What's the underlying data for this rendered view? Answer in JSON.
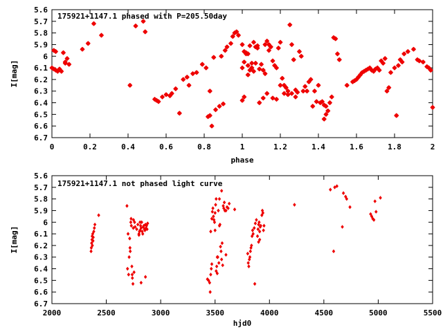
{
  "chart_data": [
    {
      "type": "scatter",
      "title": "175921+1147.1 phased with P=205.50day",
      "xlabel": "phase",
      "ylabel": "I[mag]",
      "xlim": [
        0,
        2
      ],
      "ylim": [
        5.6,
        6.7
      ],
      "y_inverted": true,
      "x_ticks": [
        "0",
        "0.2",
        "0.4",
        "0.6",
        "0.8",
        "1",
        "1.2",
        "1.4",
        "1.6",
        "1.8",
        "2"
      ],
      "y_ticks": [
        "5.6",
        "5.7",
        "5.8",
        "5.9",
        "6",
        "6.1",
        "6.2",
        "6.3",
        "6.4",
        "6.5",
        "6.6",
        "6.7"
      ],
      "marker_color": "#ee0000",
      "points": [
        [
          0.0,
          6.1
        ],
        [
          0.01,
          6.11
        ],
        [
          0.01,
          5.95
        ],
        [
          0.02,
          5.96
        ],
        [
          0.02,
          6.12
        ],
        [
          0.03,
          6.13
        ],
        [
          0.04,
          6.11
        ],
        [
          0.05,
          6.13
        ],
        [
          0.06,
          5.97
        ],
        [
          0.07,
          6.05
        ],
        [
          0.07,
          6.06
        ],
        [
          0.08,
          6.02
        ],
        [
          0.09,
          6.07
        ],
        [
          0.16,
          5.94
        ],
        [
          0.19,
          5.89
        ],
        [
          0.22,
          5.72
        ],
        [
          0.26,
          5.82
        ],
        [
          0.41,
          6.25
        ],
        [
          0.44,
          5.74
        ],
        [
          0.48,
          5.7
        ],
        [
          0.49,
          5.79
        ],
        [
          0.54,
          6.37
        ],
        [
          0.55,
          6.38
        ],
        [
          0.56,
          6.39
        ],
        [
          0.58,
          6.35
        ],
        [
          0.6,
          6.33
        ],
        [
          0.62,
          6.34
        ],
        [
          0.63,
          6.32
        ],
        [
          0.65,
          6.28
        ],
        [
          0.67,
          6.49
        ],
        [
          0.69,
          6.2
        ],
        [
          0.71,
          6.18
        ],
        [
          0.72,
          6.25
        ],
        [
          0.74,
          6.15
        ],
        [
          0.76,
          6.14
        ],
        [
          0.79,
          6.07
        ],
        [
          0.81,
          6.1
        ],
        [
          0.82,
          6.52
        ],
        [
          0.83,
          6.51
        ],
        [
          0.84,
          6.6
        ],
        [
          0.83,
          6.3
        ],
        [
          0.86,
          6.46
        ],
        [
          0.88,
          6.43
        ],
        [
          0.9,
          6.41
        ],
        [
          0.85,
          6.01
        ],
        [
          0.89,
          6.0
        ],
        [
          0.91,
          5.95
        ],
        [
          0.92,
          5.92
        ],
        [
          0.94,
          5.89
        ],
        [
          0.95,
          5.83
        ],
        [
          0.96,
          5.8
        ],
        [
          0.97,
          5.79
        ],
        [
          0.98,
          5.82
        ],
        [
          1.0,
          5.9
        ],
        [
          1.01,
          5.96
        ],
        [
          1.02,
          5.97
        ],
        [
          1.03,
          5.98
        ],
        [
          1.03,
          6.08
        ],
        [
          1.04,
          6.12
        ],
        [
          1.05,
          6.1
        ],
        [
          1.06,
          6.13
        ],
        [
          1.06,
          5.88
        ],
        [
          1.07,
          5.92
        ],
        [
          1.08,
          5.93
        ],
        [
          1.09,
          6.11
        ],
        [
          1.1,
          6.07
        ],
        [
          1.11,
          6.12
        ],
        [
          1.12,
          6.15
        ],
        [
          1.13,
          5.87
        ],
        [
          1.14,
          5.9
        ],
        [
          1.15,
          5.92
        ],
        [
          1.16,
          6.04
        ],
        [
          1.17,
          6.08
        ],
        [
          1.18,
          6.1
        ],
        [
          1.19,
          5.93
        ],
        [
          1.2,
          5.88
        ],
        [
          1.21,
          6.19
        ],
        [
          1.22,
          6.25
        ],
        [
          1.23,
          6.27
        ],
        [
          1.24,
          6.3
        ],
        [
          1.25,
          5.73
        ],
        [
          1.26,
          5.9
        ],
        [
          1.27,
          6.03
        ],
        [
          1.28,
          6.29
        ],
        [
          1.29,
          6.31
        ],
        [
          1.3,
          5.96
        ],
        [
          1.31,
          6.0
        ],
        [
          1.32,
          6.3
        ],
        [
          1.33,
          6.26
        ],
        [
          1.35,
          6.22
        ],
        [
          1.36,
          6.2
        ],
        [
          1.38,
          6.3
        ],
        [
          1.4,
          6.25
        ],
        [
          1.41,
          6.4
        ],
        [
          1.42,
          6.39
        ],
        [
          1.43,
          6.42
        ],
        [
          1.44,
          6.43
        ],
        [
          1.45,
          6.47
        ],
        [
          1.46,
          6.4
        ],
        [
          1.47,
          6.35
        ],
        [
          1.48,
          5.84
        ],
        [
          1.49,
          5.85
        ],
        [
          1.5,
          5.98
        ],
        [
          1.51,
          6.03
        ],
        [
          1.55,
          6.25
        ],
        [
          1.58,
          6.22
        ],
        [
          1.59,
          6.21
        ],
        [
          1.6,
          6.2
        ],
        [
          1.61,
          6.18
        ],
        [
          1.62,
          6.16
        ],
        [
          1.63,
          6.14
        ],
        [
          1.64,
          6.13
        ],
        [
          1.65,
          6.12
        ],
        [
          1.66,
          6.11
        ],
        [
          1.67,
          6.1
        ],
        [
          1.68,
          6.12
        ],
        [
          1.69,
          6.13
        ],
        [
          1.7,
          6.11
        ],
        [
          1.71,
          6.1
        ],
        [
          1.72,
          6.12
        ],
        [
          1.73,
          6.04
        ],
        [
          1.74,
          6.06
        ],
        [
          1.75,
          6.02
        ],
        [
          1.76,
          6.3
        ],
        [
          1.77,
          6.27
        ],
        [
          1.78,
          6.14
        ],
        [
          1.8,
          6.1
        ],
        [
          1.81,
          6.51
        ],
        [
          1.82,
          6.08
        ],
        [
          1.83,
          6.03
        ],
        [
          1.84,
          6.05
        ],
        [
          1.85,
          5.98
        ],
        [
          1.87,
          5.96
        ],
        [
          1.9,
          5.94
        ],
        [
          1.92,
          6.03
        ],
        [
          1.93,
          6.04
        ],
        [
          1.95,
          6.05
        ],
        [
          1.97,
          6.09
        ],
        [
          1.98,
          6.1
        ],
        [
          1.99,
          6.12
        ],
        [
          2.0,
          6.44
        ],
        [
          1.0,
          6.1
        ],
        [
          1.01,
          6.05
        ],
        [
          1.02,
          5.98
        ],
        [
          1.05,
          6.1
        ],
        [
          1.07,
          6.06
        ],
        [
          1.12,
          5.9
        ],
        [
          1.14,
          5.95
        ],
        [
          1.04,
          5.91
        ],
        [
          1.08,
          5.91
        ],
        [
          1.0,
          6.38
        ],
        [
          1.01,
          6.35
        ],
        [
          1.03,
          6.16
        ],
        [
          1.05,
          6.06
        ],
        [
          1.09,
          6.4
        ],
        [
          1.11,
          6.36
        ],
        [
          1.13,
          6.32
        ],
        [
          1.16,
          6.36
        ],
        [
          1.18,
          6.37
        ],
        [
          1.2,
          6.25
        ],
        [
          1.22,
          6.32
        ],
        [
          1.24,
          6.33
        ],
        [
          1.26,
          6.32
        ],
        [
          1.28,
          6.35
        ],
        [
          1.34,
          6.3
        ],
        [
          1.37,
          6.43
        ],
        [
          1.39,
          6.39
        ],
        [
          1.44,
          6.5
        ],
        [
          1.43,
          6.54
        ]
      ]
    },
    {
      "type": "scatter",
      "title": "175921+1147.1 not phased light curve",
      "xlabel": "hjd0",
      "ylabel": "I[mag]",
      "xlim": [
        2000,
        5500
      ],
      "ylim": [
        5.6,
        6.7
      ],
      "y_inverted": true,
      "x_ticks": [
        "2000",
        "2500",
        "3000",
        "3500",
        "4000",
        "4500",
        "5000",
        "5500"
      ],
      "y_ticks": [
        "5.6",
        "5.7",
        "5.8",
        "5.9",
        "6",
        "6.1",
        "6.2",
        "6.3",
        "6.4",
        "6.5",
        "6.6",
        "6.7"
      ],
      "marker_color": "#ee0000",
      "points": [
        [
          2360,
          6.25
        ],
        [
          2362,
          6.22
        ],
        [
          2365,
          6.18
        ],
        [
          2368,
          6.15
        ],
        [
          2370,
          6.12
        ],
        [
          2372,
          6.2
        ],
        [
          2375,
          6.1
        ],
        [
          2378,
          6.16
        ],
        [
          2380,
          6.13
        ],
        [
          2385,
          6.08
        ],
        [
          2390,
          6.05
        ],
        [
          2395,
          6.02
        ],
        [
          2430,
          5.94
        ],
        [
          2690,
          5.86
        ],
        [
          2695,
          6.4
        ],
        [
          2700,
          6.1
        ],
        [
          2705,
          6.45
        ],
        [
          2710,
          6.3
        ],
        [
          2715,
          6.14
        ],
        [
          2718,
          6.22
        ],
        [
          2720,
          6.25
        ],
        [
          2725,
          6.0
        ],
        [
          2728,
          5.97
        ],
        [
          2730,
          6.03
        ],
        [
          2735,
          6.38
        ],
        [
          2738,
          6.45
        ],
        [
          2740,
          6.48
        ],
        [
          2745,
          6.53
        ],
        [
          2748,
          6.05
        ],
        [
          2750,
          5.98
        ],
        [
          2755,
          6.43
        ],
        [
          2760,
          6.0
        ],
        [
          2765,
          6.04
        ],
        [
          2780,
          6.06
        ],
        [
          2790,
          6.02
        ],
        [
          2800,
          6.1
        ],
        [
          2805,
          6.08
        ],
        [
          2810,
          6.07
        ],
        [
          2815,
          6.03
        ],
        [
          2820,
          6.05
        ],
        [
          2825,
          6.0
        ],
        [
          2830,
          6.08
        ],
        [
          2835,
          6.1
        ],
        [
          2840,
          6.04
        ],
        [
          2845,
          6.03
        ],
        [
          2850,
          6.06
        ],
        [
          2855,
          6.07
        ],
        [
          2860,
          6.02
        ],
        [
          2865,
          6.05
        ],
        [
          2870,
          6.03
        ],
        [
          2875,
          6.06
        ],
        [
          2880,
          6.01
        ],
        [
          2860,
          6.47
        ],
        [
          2820,
          6.52
        ],
        [
          2800,
          6.11
        ],
        [
          2810,
          6.0
        ],
        [
          3430,
          6.49
        ],
        [
          3440,
          6.5
        ],
        [
          3450,
          6.52
        ],
        [
          3455,
          6.6
        ],
        [
          3460,
          6.45
        ],
        [
          3465,
          6.4
        ],
        [
          3470,
          6.36
        ],
        [
          3475,
          5.91
        ],
        [
          3480,
          5.88
        ],
        [
          3485,
          5.95
        ],
        [
          3490,
          5.98
        ],
        [
          3495,
          6.0
        ],
        [
          3500,
          5.92
        ],
        [
          3505,
          5.85
        ],
        [
          3510,
          5.8
        ],
        [
          3515,
          6.38
        ],
        [
          3520,
          6.44
        ],
        [
          3525,
          6.3
        ],
        [
          3530,
          5.9
        ],
        [
          3535,
          6.35
        ],
        [
          3540,
          6.03
        ],
        [
          3545,
          6.02
        ],
        [
          3550,
          6.21
        ],
        [
          3555,
          6.25
        ],
        [
          3560,
          6.32
        ],
        [
          3565,
          6.18
        ],
        [
          3570,
          6.37
        ],
        [
          3575,
          5.86
        ],
        [
          3580,
          5.88
        ],
        [
          3585,
          5.83
        ],
        [
          3590,
          5.9
        ],
        [
          3560,
          5.73
        ],
        [
          3540,
          5.8
        ],
        [
          3510,
          6.42
        ],
        [
          3600,
          5.9
        ],
        [
          3610,
          5.87
        ],
        [
          3620,
          5.88
        ],
        [
          3630,
          5.84
        ],
        [
          3680,
          5.89
        ],
        [
          3460,
          6.08
        ],
        [
          3470,
          5.97
        ],
        [
          3500,
          6.07
        ],
        [
          3520,
          6.3
        ],
        [
          3600,
          6.28
        ],
        [
          3800,
          6.27
        ],
        [
          3805,
          6.35
        ],
        [
          3810,
          6.38
        ],
        [
          3815,
          6.32
        ],
        [
          3820,
          6.3
        ],
        [
          3825,
          6.25
        ],
        [
          3830,
          6.22
        ],
        [
          3835,
          6.2
        ],
        [
          3840,
          6.12
        ],
        [
          3845,
          6.07
        ],
        [
          3850,
          6.1
        ],
        [
          3860,
          6.05
        ],
        [
          3865,
          6.53
        ],
        [
          3870,
          6.01
        ],
        [
          3880,
          5.98
        ],
        [
          3890,
          6.12
        ],
        [
          3895,
          6.06
        ],
        [
          3900,
          6.02
        ],
        [
          3905,
          6.0
        ],
        [
          3910,
          6.08
        ],
        [
          3915,
          6.04
        ],
        [
          3920,
          6.03
        ],
        [
          3930,
          5.94
        ],
        [
          3935,
          5.9
        ],
        [
          3940,
          5.92
        ],
        [
          3945,
          6.07
        ],
        [
          3950,
          6.03
        ],
        [
          3900,
          6.17
        ],
        [
          3910,
          6.15
        ],
        [
          4230,
          5.85
        ],
        [
          4560,
          5.72
        ],
        [
          4590,
          6.25
        ],
        [
          4600,
          5.7
        ],
        [
          4620,
          5.69
        ],
        [
          4670,
          6.04
        ],
        [
          4680,
          5.75
        ],
        [
          4700,
          5.78
        ],
        [
          4710,
          5.8
        ],
        [
          4740,
          5.87
        ],
        [
          4930,
          5.93
        ],
        [
          4940,
          5.95
        ],
        [
          4950,
          5.97
        ],
        [
          4960,
          5.98
        ],
        [
          4980,
          5.91
        ],
        [
          4970,
          5.82
        ],
        [
          5020,
          5.79
        ]
      ]
    }
  ]
}
